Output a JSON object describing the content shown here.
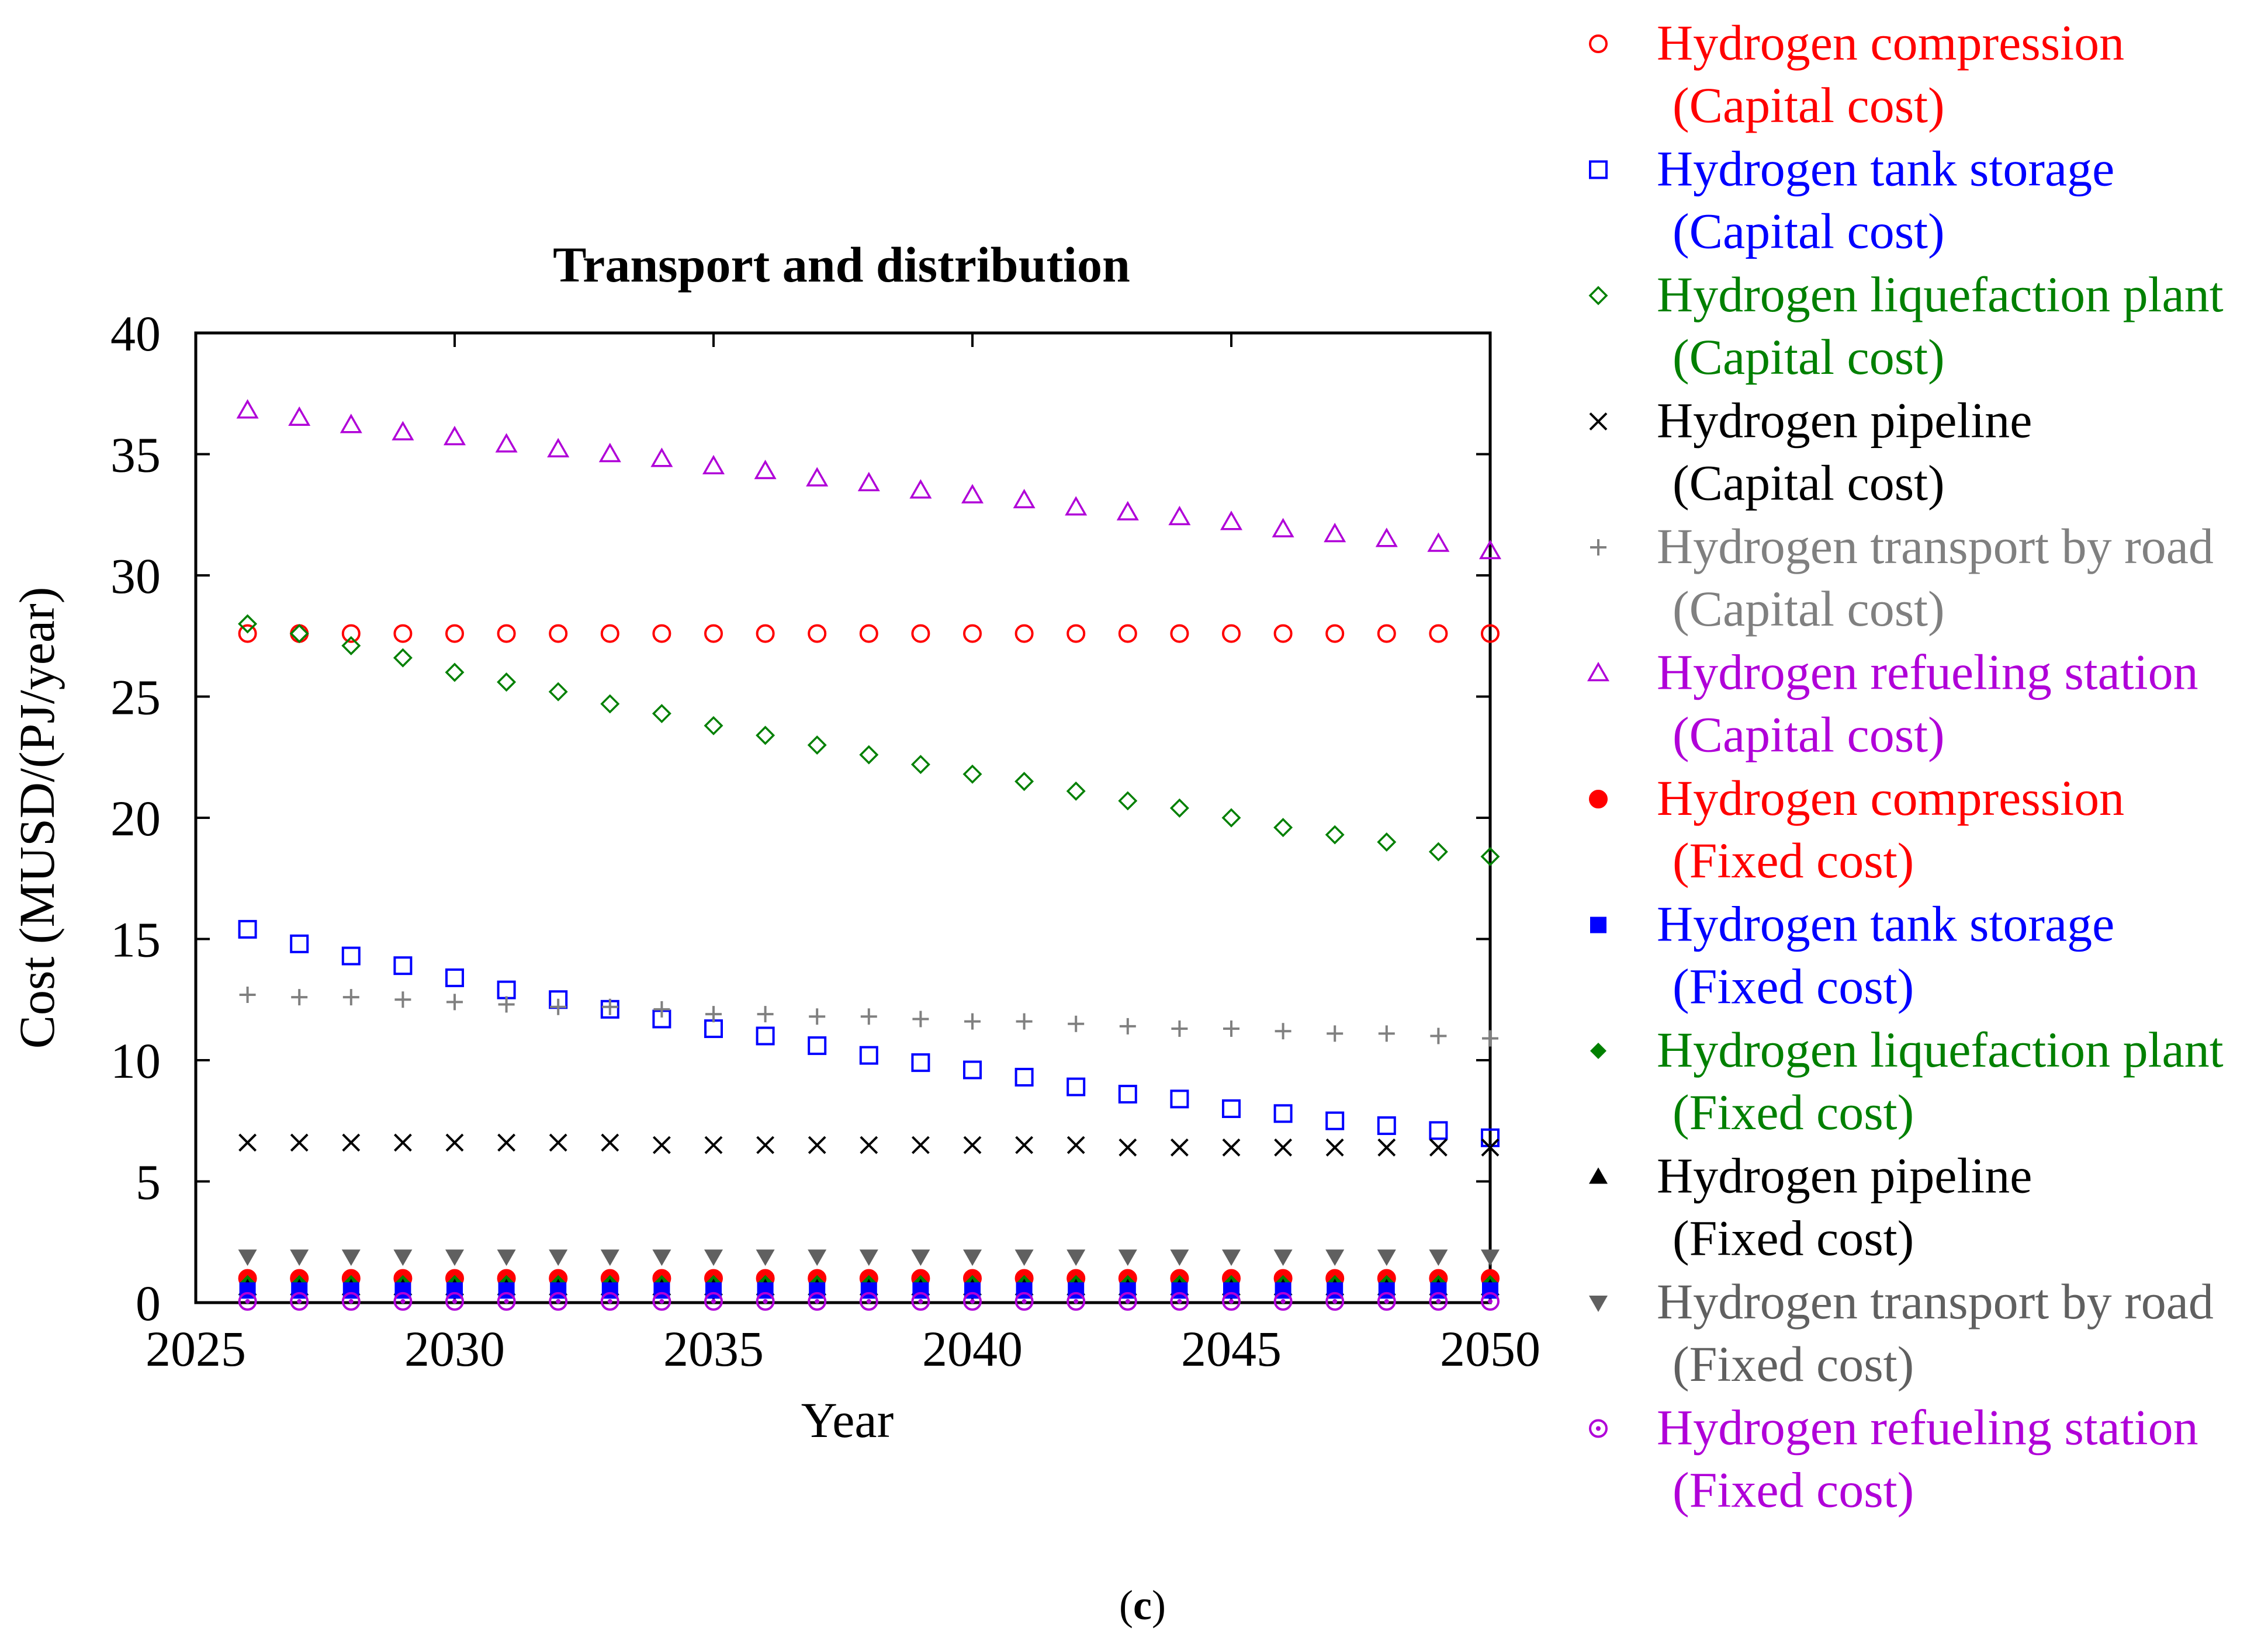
{
  "chart_data": {
    "type": "scatter",
    "title": "Transport and distribution",
    "xlabel": "Year",
    "ylabel": "Cost (MUSD/(PJ/year)",
    "xlim": [
      2025,
      2050
    ],
    "ylim": [
      0,
      40
    ],
    "xticks": [
      2025,
      2030,
      2035,
      2040,
      2045,
      2050
    ],
    "yticks": [
      0,
      5,
      10,
      15,
      20,
      25,
      30,
      35,
      40
    ],
    "grid": false,
    "legend_position": "right",
    "x": [
      2026,
      2027,
      2028,
      2029,
      2030,
      2031,
      2032,
      2033,
      2034,
      2035,
      2036,
      2037,
      2038,
      2039,
      2040,
      2041,
      2042,
      2043,
      2044,
      2045,
      2046,
      2047,
      2048,
      2049,
      2050
    ],
    "series": [
      {
        "name": "Hydrogen compression",
        "sub": "(Capital cost)",
        "color": "#ff0000",
        "marker": "circle-open",
        "values": [
          27.6,
          27.6,
          27.6,
          27.6,
          27.6,
          27.6,
          27.6,
          27.6,
          27.6,
          27.6,
          27.6,
          27.6,
          27.6,
          27.6,
          27.6,
          27.6,
          27.6,
          27.6,
          27.6,
          27.6,
          27.6,
          27.6,
          27.6,
          27.6,
          27.6
        ]
      },
      {
        "name": "Hydrogen tank storage",
        "sub": "(Capital cost)",
        "color": "#0000ff",
        "marker": "square-open",
        "values": [
          15.4,
          14.8,
          14.3,
          13.9,
          13.4,
          12.9,
          12.5,
          12.1,
          11.7,
          11.3,
          11.0,
          10.6,
          10.2,
          9.9,
          9.6,
          9.3,
          8.9,
          8.6,
          8.4,
          8.0,
          7.8,
          7.5,
          7.3,
          7.1,
          6.8
        ]
      },
      {
        "name": "Hydrogen liquefaction plant",
        "sub": "(Capital cost)",
        "color": "#008000",
        "marker": "diamond-open",
        "values": [
          28.0,
          27.6,
          27.1,
          26.6,
          26.0,
          25.6,
          25.2,
          24.7,
          24.3,
          23.8,
          23.4,
          23.0,
          22.6,
          22.2,
          21.8,
          21.5,
          21.1,
          20.7,
          20.4,
          20.0,
          19.6,
          19.3,
          19.0,
          18.6,
          18.4
        ]
      },
      {
        "name": "Hydrogen pipeline",
        "sub": "(Capital cost)",
        "color": "#000000",
        "marker": "x",
        "values": [
          6.6,
          6.6,
          6.6,
          6.6,
          6.6,
          6.6,
          6.6,
          6.6,
          6.5,
          6.5,
          6.5,
          6.5,
          6.5,
          6.5,
          6.5,
          6.5,
          6.5,
          6.4,
          6.4,
          6.4,
          6.4,
          6.4,
          6.4,
          6.4,
          6.4
        ]
      },
      {
        "name": "Hydrogen transport by road",
        "sub": "(Capital cost)",
        "color": "#808080",
        "marker": "plus",
        "values": [
          12.7,
          12.6,
          12.6,
          12.5,
          12.4,
          12.3,
          12.2,
          12.2,
          12.1,
          11.9,
          11.9,
          11.8,
          11.8,
          11.7,
          11.6,
          11.6,
          11.5,
          11.4,
          11.3,
          11.3,
          11.2,
          11.1,
          11.1,
          11.0,
          10.9
        ]
      },
      {
        "name": "Hydrogen refueling station",
        "sub": "(Capital cost)",
        "color": "#b000d8",
        "marker": "triangle-open",
        "values": [
          36.8,
          36.5,
          36.2,
          35.9,
          35.7,
          35.4,
          35.2,
          35.0,
          34.8,
          34.5,
          34.3,
          34.0,
          33.8,
          33.5,
          33.3,
          33.1,
          32.8,
          32.6,
          32.4,
          32.2,
          31.9,
          31.7,
          31.5,
          31.3,
          31.0
        ]
      },
      {
        "name": "Hydrogen compression",
        "sub": "(Fixed cost)",
        "color": "#ff0000",
        "marker": "circle-filled",
        "values": [
          1.0,
          1.0,
          1.0,
          1.0,
          1.0,
          1.0,
          1.0,
          1.0,
          1.0,
          1.0,
          1.0,
          1.0,
          1.0,
          1.0,
          1.0,
          1.0,
          1.0,
          1.0,
          1.0,
          1.0,
          1.0,
          1.0,
          1.0,
          1.0,
          1.0
        ]
      },
      {
        "name": "Hydrogen tank storage",
        "sub": "(Fixed cost)",
        "color": "#0000ff",
        "marker": "square-filled",
        "values": [
          0.5,
          0.5,
          0.5,
          0.5,
          0.5,
          0.5,
          0.5,
          0.5,
          0.5,
          0.5,
          0.5,
          0.5,
          0.5,
          0.5,
          0.5,
          0.5,
          0.5,
          0.5,
          0.5,
          0.5,
          0.5,
          0.5,
          0.5,
          0.5,
          0.5
        ]
      },
      {
        "name": "Hydrogen liquefaction plant",
        "sub": "(Fixed cost)",
        "color": "#008000",
        "marker": "diamond-filled",
        "values": [
          0.8,
          0.8,
          0.8,
          0.8,
          0.8,
          0.8,
          0.8,
          0.8,
          0.8,
          0.8,
          0.8,
          0.8,
          0.8,
          0.8,
          0.8,
          0.8,
          0.8,
          0.8,
          0.8,
          0.8,
          0.8,
          0.8,
          0.8,
          0.8,
          0.8
        ]
      },
      {
        "name": "Hydrogen pipeline",
        "sub": "(Fixed cost)",
        "color": "#000000",
        "marker": "triangle-filled",
        "values": [
          0.6,
          0.6,
          0.6,
          0.6,
          0.6,
          0.6,
          0.6,
          0.6,
          0.6,
          0.6,
          0.6,
          0.6,
          0.6,
          0.6,
          0.6,
          0.6,
          0.6,
          0.6,
          0.6,
          0.6,
          0.6,
          0.6,
          0.6,
          0.6,
          0.6
        ]
      },
      {
        "name": "Hydrogen transport by road",
        "sub": "(Fixed cost)",
        "color": "#606060",
        "marker": "triangle-down-filled",
        "values": [
          1.9,
          1.9,
          1.9,
          1.9,
          1.9,
          1.9,
          1.9,
          1.9,
          1.9,
          1.9,
          1.9,
          1.9,
          1.9,
          1.9,
          1.9,
          1.9,
          1.9,
          1.9,
          1.9,
          1.9,
          1.9,
          1.9,
          1.9,
          1.9,
          1.9
        ]
      },
      {
        "name": "Hydrogen refueling station",
        "sub": "(Fixed cost)",
        "color": "#b000d8",
        "marker": "circle-dot",
        "values": [
          0.05,
          0.05,
          0.05,
          0.05,
          0.05,
          0.05,
          0.05,
          0.05,
          0.05,
          0.05,
          0.05,
          0.05,
          0.05,
          0.05,
          0.05,
          0.05,
          0.05,
          0.05,
          0.05,
          0.05,
          0.05,
          0.05,
          0.05,
          0.05,
          0.05
        ]
      }
    ]
  },
  "caption": {
    "open": "(",
    "letter": "c",
    "close": ")"
  }
}
